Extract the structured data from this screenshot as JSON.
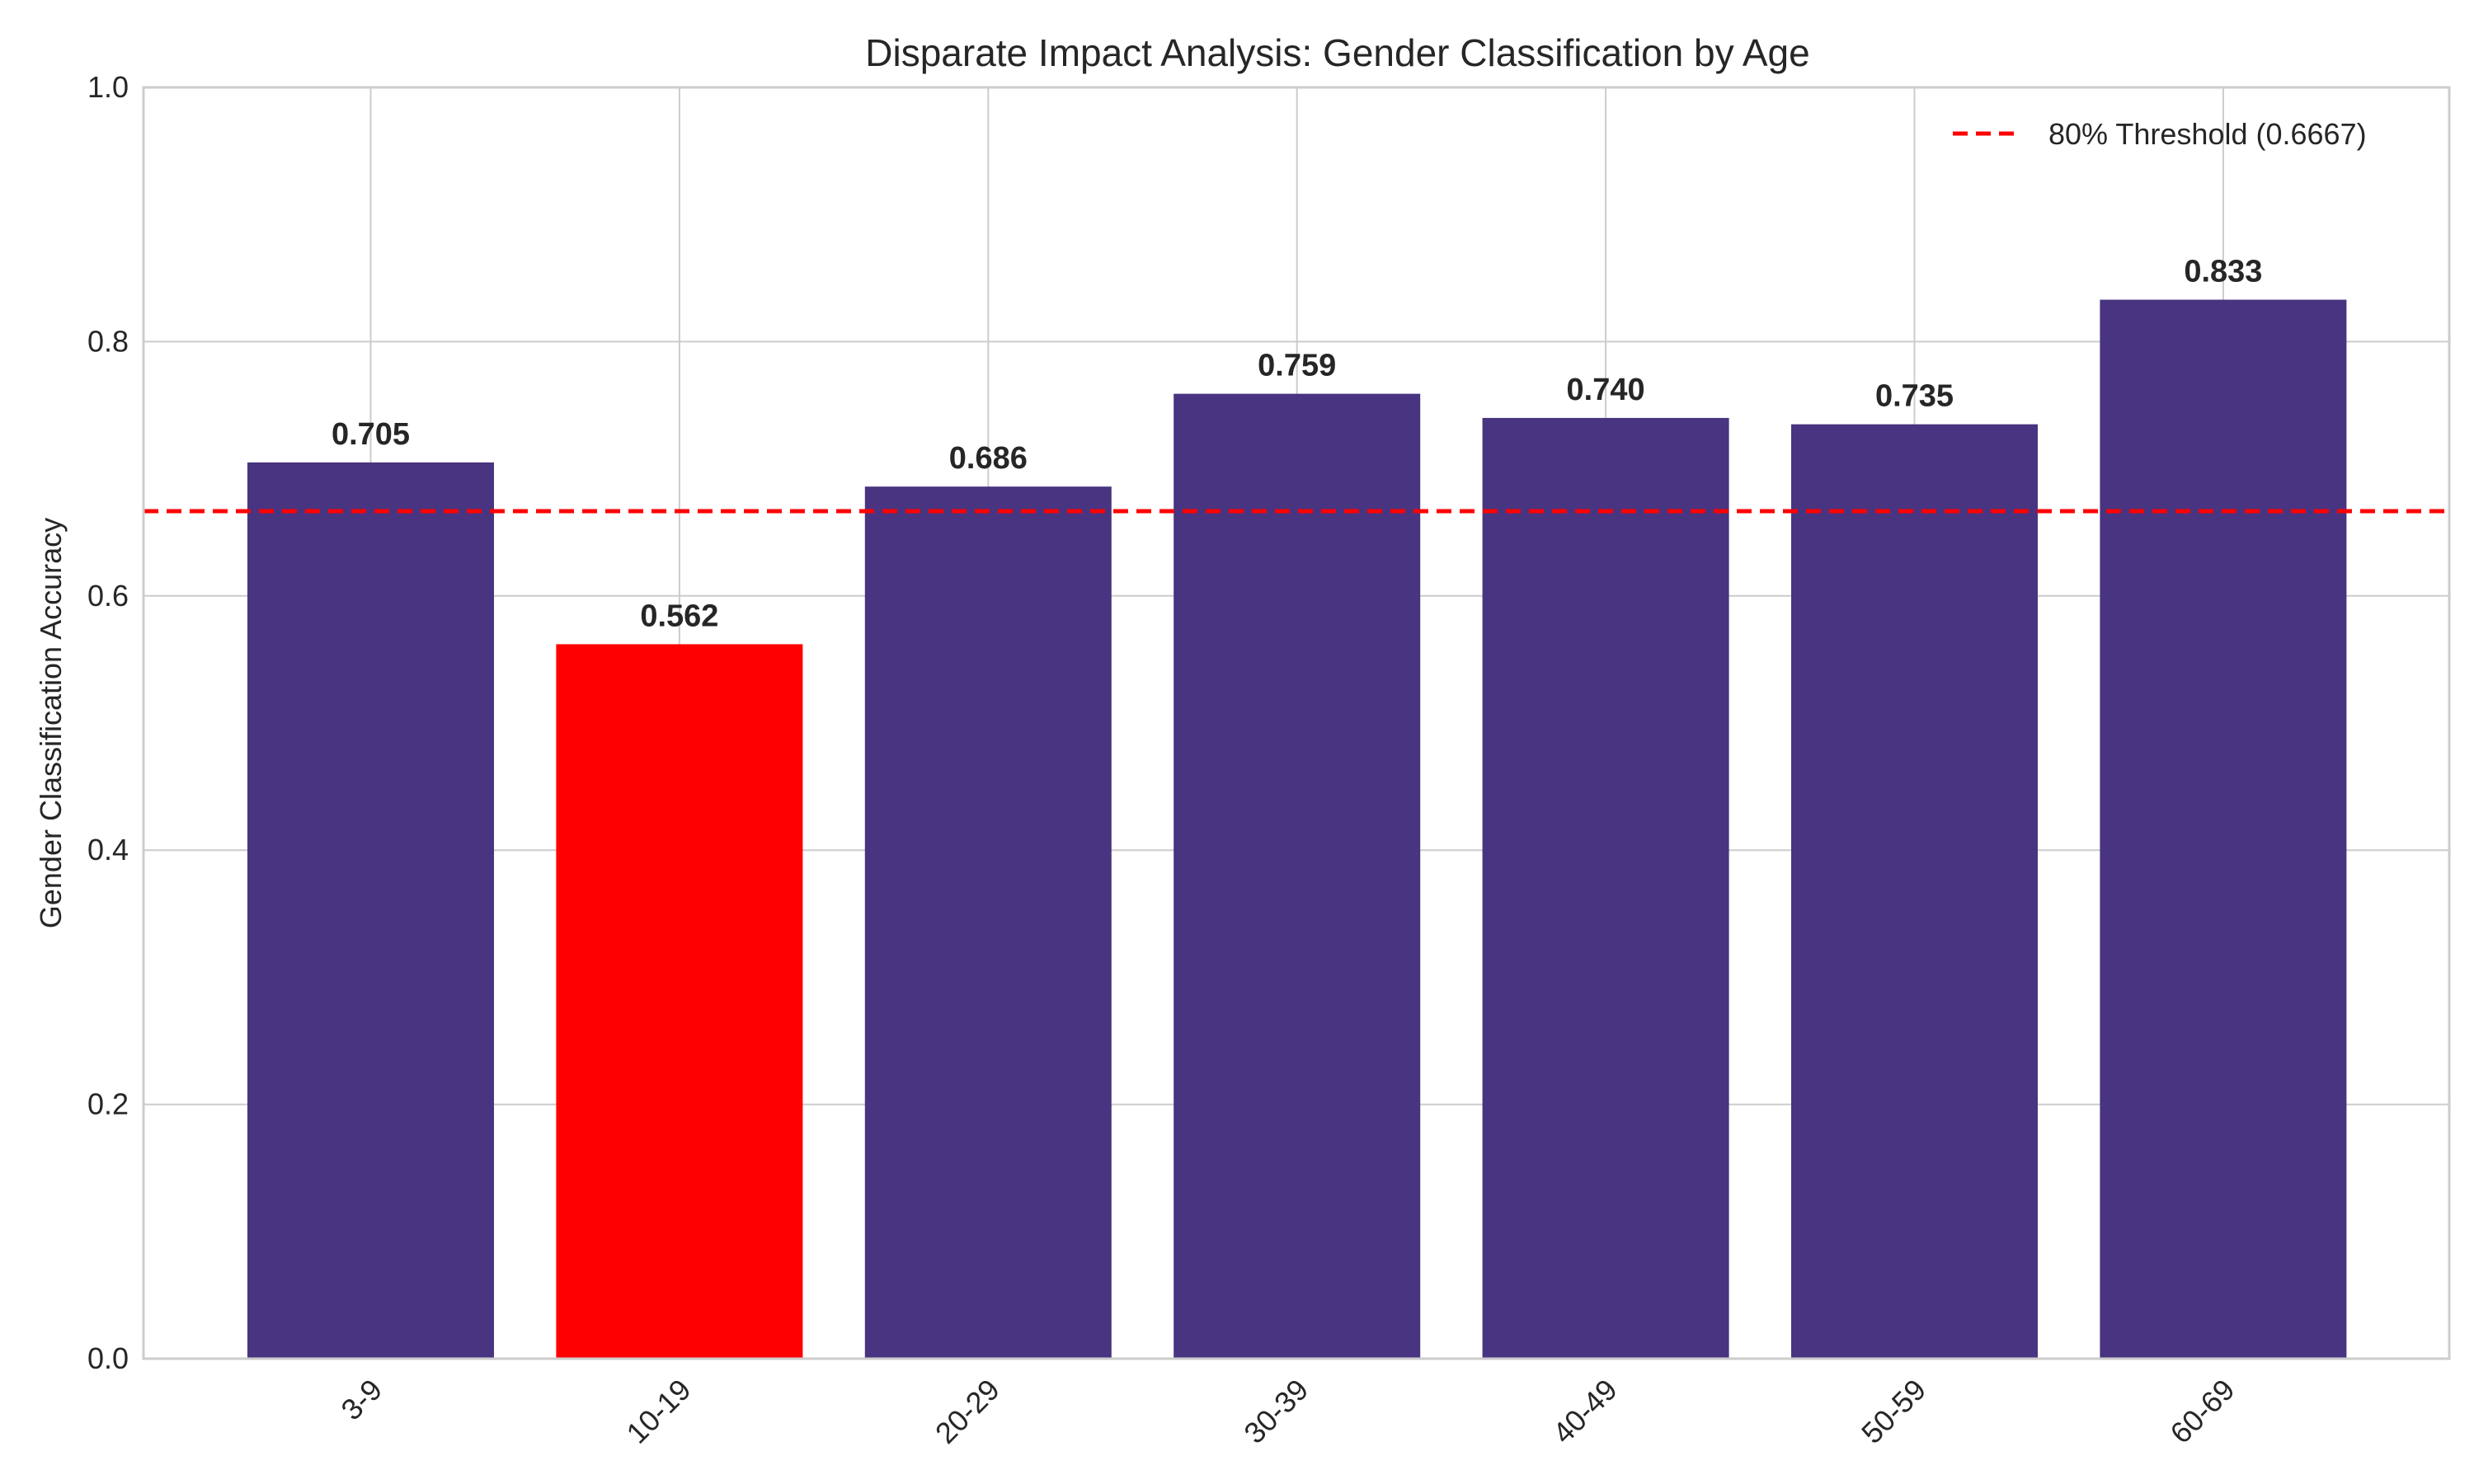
{
  "chart_data": {
    "type": "bar",
    "title": "Disparate Impact Analysis: Gender Classification by Age",
    "xlabel": "",
    "ylabel": "Gender Classification Accuracy",
    "categories": [
      "3-9",
      "10-19",
      "20-29",
      "30-39",
      "40-49",
      "50-59",
      "60-69"
    ],
    "values": [
      0.705,
      0.562,
      0.686,
      0.759,
      0.74,
      0.735,
      0.833
    ],
    "value_labels": [
      "0.705",
      "0.562",
      "0.686",
      "0.759",
      "0.740",
      "0.735",
      "0.833"
    ],
    "bar_colors": [
      "#483480",
      "#ff0000",
      "#483480",
      "#483480",
      "#483480",
      "#483480",
      "#483480"
    ],
    "ylim": [
      0,
      1.0
    ],
    "yticks": [
      0.0,
      0.2,
      0.4,
      0.6,
      0.8,
      1.0
    ],
    "ytick_labels": [
      "0.0",
      "0.2",
      "0.4",
      "0.6",
      "0.8",
      "1.0"
    ],
    "grid": true,
    "threshold": {
      "value": 0.6667,
      "label": "80% Threshold (0.6667)",
      "color": "#ff0000",
      "style": "dashed"
    },
    "legend_position": "top-right"
  }
}
